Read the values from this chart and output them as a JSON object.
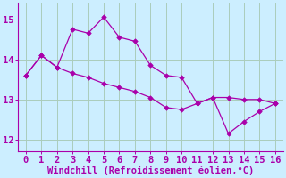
{
  "xlabel": "Windchill (Refroidissement éolien,°C)",
  "bg_color": "#cceeff",
  "line_color": "#aa00aa",
  "grid_color": "#aaccbb",
  "spine_color": "#888888",
  "series1_x": [
    0,
    1,
    2,
    3,
    4,
    5,
    6,
    7,
    8,
    9,
    10,
    11,
    12,
    13,
    14,
    15,
    16
  ],
  "series1_y": [
    13.6,
    14.1,
    13.8,
    14.75,
    14.65,
    15.05,
    14.55,
    14.45,
    13.85,
    13.6,
    13.55,
    12.9,
    13.05,
    12.15,
    12.45,
    12.7,
    12.9
  ],
  "series2_x": [
    0,
    1,
    2,
    3,
    4,
    5,
    6,
    7,
    8,
    9,
    10,
    11,
    12,
    13,
    14,
    15,
    16
  ],
  "series2_y": [
    13.6,
    14.1,
    13.8,
    13.65,
    13.55,
    13.4,
    13.3,
    13.2,
    13.05,
    12.8,
    12.75,
    12.9,
    13.05,
    13.05,
    13.0,
    13.0,
    12.9
  ],
  "ylim": [
    11.7,
    15.4
  ],
  "xlim": [
    -0.5,
    16.5
  ],
  "yticks": [
    12,
    13,
    14,
    15
  ],
  "xticks": [
    0,
    1,
    2,
    3,
    4,
    5,
    6,
    7,
    8,
    9,
    10,
    11,
    12,
    13,
    14,
    15,
    16
  ],
  "marker": "D",
  "markersize": 2.8,
  "linewidth": 0.9,
  "tick_fontsize": 7.5,
  "xlabel_fontsize": 7.5
}
